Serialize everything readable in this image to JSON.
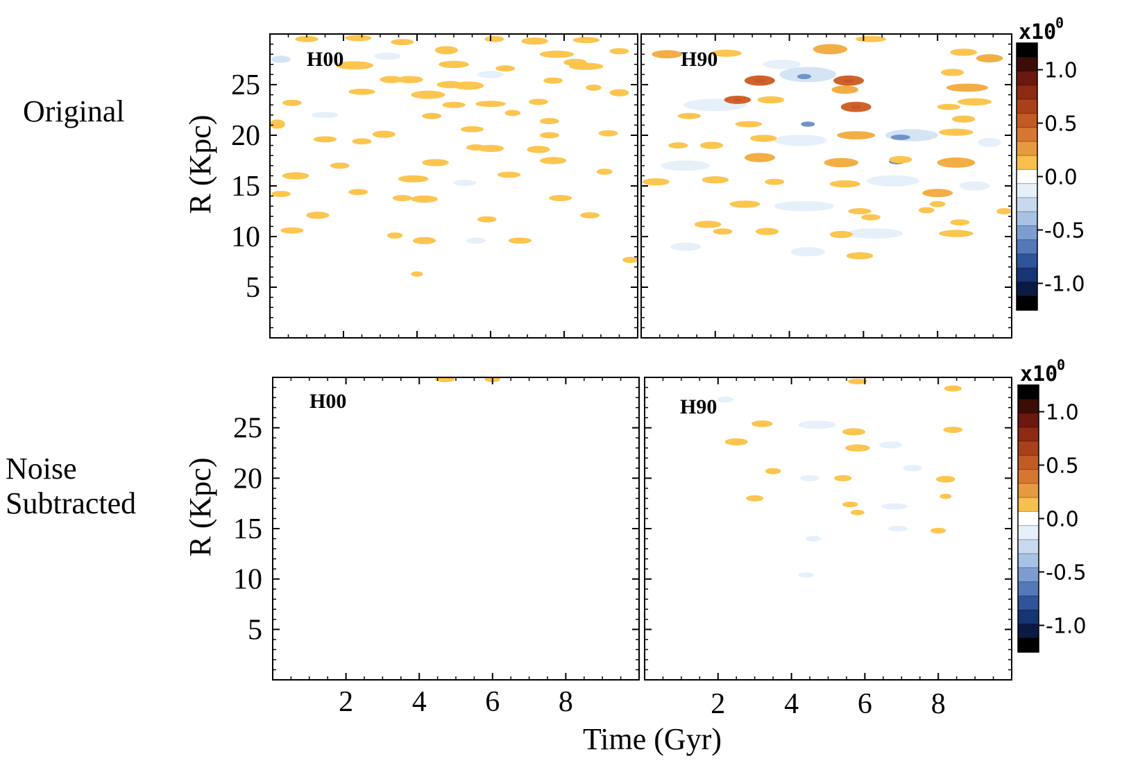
{
  "chart_data": {
    "type": "heatmap",
    "description_units": {
      "x": "Time (Gyr)",
      "y": "R (Kpc)",
      "z": "x10^0"
    },
    "xlabel": "Time (Gyr)",
    "ylabel": "R (Kpc)",
    "xlim": [
      0,
      10
    ],
    "ylim": [
      0,
      30
    ],
    "x_ticks": [
      2,
      4,
      6,
      8
    ],
    "x_tick_labels": [
      "2",
      "4",
      "6",
      "8"
    ],
    "y_ticks": [
      5,
      10,
      15,
      20,
      25
    ],
    "y_tick_labels": [
      "5",
      "10",
      "15",
      "20",
      "25"
    ],
    "rows": [
      {
        "label": "Original"
      },
      {
        "label": "Noise Subtracted",
        "label_lines": [
          "Noise",
          "Subtracted"
        ]
      }
    ],
    "colorbar": {
      "exponent_base": "x10",
      "exponent_power": "0",
      "range": [
        -1.25,
        1.25
      ],
      "tick_values": [
        1.0,
        0.5,
        0.0,
        -0.5,
        -1.0
      ],
      "tick_labels": [
        "1.0",
        "0.5",
        "0.0",
        "-0.5",
        "-1.0"
      ],
      "colors": [
        "#000000",
        "#3a0d06",
        "#6a1810",
        "#8c2a12",
        "#a8401a",
        "#c25a24",
        "#d57633",
        "#e69a40",
        "#f7c04e",
        "#ffffff",
        "#e6f0f9",
        "#c8d9ee",
        "#a8c2e4",
        "#7d9dd0",
        "#5478b8",
        "#2f549a",
        "#173473",
        "#0a1a44",
        "#000000"
      ]
    },
    "panels": [
      {
        "row": 0,
        "col": 0,
        "label": "H00",
        "blobs": [
          [
            1.0,
            29.5,
            0.4,
            0.2,
            0.3
          ],
          [
            2.4,
            29.6,
            0.5,
            0.2,
            0.3
          ],
          [
            3.6,
            29.2,
            0.4,
            0.2,
            0.3
          ],
          [
            6.1,
            29.5,
            0.3,
            0.2,
            0.3
          ],
          [
            7.2,
            29.3,
            0.5,
            0.3,
            0.3
          ],
          [
            8.6,
            29.4,
            0.5,
            0.2,
            0.3
          ],
          [
            4.8,
            28.4,
            0.4,
            0.4,
            0.35
          ],
          [
            7.8,
            28.0,
            0.7,
            0.3,
            0.35
          ],
          [
            8.3,
            27.2,
            0.4,
            0.3,
            0.35
          ],
          [
            9.5,
            28.3,
            0.3,
            0.2,
            0.3
          ],
          [
            2.3,
            26.9,
            0.8,
            0.4,
            0.35
          ],
          [
            5.0,
            27.0,
            0.6,
            0.3,
            0.35
          ],
          [
            8.6,
            26.8,
            0.7,
            0.3,
            0.35
          ],
          [
            6.4,
            26.6,
            0.3,
            0.2,
            0.3
          ],
          [
            3.3,
            25.5,
            0.4,
            0.3,
            0.3
          ],
          [
            3.8,
            25.5,
            0.5,
            0.3,
            0.3
          ],
          [
            4.9,
            25.0,
            0.5,
            0.3,
            0.3
          ],
          [
            5.4,
            24.9,
            0.6,
            0.4,
            0.35
          ],
          [
            7.7,
            25.4,
            0.3,
            0.2,
            0.3
          ],
          [
            2.5,
            24.3,
            0.5,
            0.2,
            0.3
          ],
          [
            8.8,
            24.7,
            0.2,
            0.2,
            0.3
          ],
          [
            4.3,
            24.0,
            0.7,
            0.4,
            0.35
          ],
          [
            9.5,
            24.2,
            0.3,
            0.3,
            0.3
          ],
          [
            0.6,
            23.2,
            0.3,
            0.2,
            0.3
          ],
          [
            5.0,
            23.0,
            0.4,
            0.2,
            0.3
          ],
          [
            6.0,
            23.1,
            0.6,
            0.2,
            0.3
          ],
          [
            7.3,
            23.3,
            0.3,
            0.2,
            0.3
          ],
          [
            4.4,
            21.9,
            0.3,
            0.2,
            0.3
          ],
          [
            6.6,
            22.2,
            0.2,
            0.2,
            0.3
          ],
          [
            0.2,
            21.1,
            0.2,
            0.5,
            0.35
          ],
          [
            7.6,
            21.4,
            0.3,
            0.2,
            0.3
          ],
          [
            5.5,
            20.6,
            0.4,
            0.2,
            0.3
          ],
          [
            9.2,
            20.2,
            0.3,
            0.2,
            0.3
          ],
          [
            3.1,
            20.1,
            0.4,
            0.3,
            0.35
          ],
          [
            7.6,
            20.0,
            0.3,
            0.2,
            0.3
          ],
          [
            1.5,
            19.6,
            0.4,
            0.2,
            0.3
          ],
          [
            2.5,
            19.4,
            0.3,
            0.2,
            0.3
          ],
          [
            5.6,
            18.8,
            0.3,
            0.2,
            0.3
          ],
          [
            6.0,
            18.7,
            0.5,
            0.3,
            0.35
          ],
          [
            7.3,
            18.6,
            0.4,
            0.3,
            0.35
          ],
          [
            4.5,
            17.3,
            0.5,
            0.3,
            0.35
          ],
          [
            7.7,
            17.5,
            0.5,
            0.3,
            0.35
          ],
          [
            1.9,
            17.0,
            0.3,
            0.2,
            0.3
          ],
          [
            0.7,
            16.0,
            0.5,
            0.3,
            0.35
          ],
          [
            3.9,
            15.7,
            0.6,
            0.3,
            0.35
          ],
          [
            6.5,
            16.1,
            0.4,
            0.2,
            0.3
          ],
          [
            9.1,
            16.4,
            0.2,
            0.2,
            0.3
          ],
          [
            0.3,
            14.2,
            0.3,
            0.2,
            0.3
          ],
          [
            2.4,
            14.4,
            0.3,
            0.2,
            0.3
          ],
          [
            4.2,
            13.7,
            0.5,
            0.3,
            0.35
          ],
          [
            7.9,
            13.8,
            0.4,
            0.2,
            0.3
          ],
          [
            3.6,
            13.8,
            0.3,
            0.2,
            0.3
          ],
          [
            1.3,
            12.1,
            0.4,
            0.3,
            0.35
          ],
          [
            5.9,
            11.7,
            0.3,
            0.2,
            0.3
          ],
          [
            8.7,
            12.1,
            0.3,
            0.2,
            0.3
          ],
          [
            0.6,
            10.6,
            0.4,
            0.2,
            0.3
          ],
          [
            4.2,
            9.6,
            0.4,
            0.3,
            0.35
          ],
          [
            6.8,
            9.6,
            0.4,
            0.2,
            0.3
          ],
          [
            3.4,
            10.1,
            0.2,
            0.2,
            0.3
          ],
          [
            9.8,
            7.7,
            0.2,
            0.2,
            0.3
          ],
          [
            4.0,
            6.3,
            0.1,
            0.1,
            0.3
          ],
          [
            0.3,
            27.5,
            0.3,
            0.3,
            -0.18
          ],
          [
            3.2,
            27.8,
            0.5,
            0.3,
            -0.12
          ],
          [
            6.0,
            26.0,
            0.5,
            0.3,
            -0.12
          ],
          [
            1.5,
            22.0,
            0.5,
            0.2,
            -0.12
          ],
          [
            5.3,
            15.3,
            0.4,
            0.2,
            -0.12
          ],
          [
            5.6,
            9.6,
            0.3,
            0.2,
            -0.12
          ]
        ]
      },
      {
        "row": 0,
        "col": 1,
        "label": "H90",
        "blobs": [
          [
            0.7,
            28.0,
            0.6,
            0.4,
            0.4
          ],
          [
            2.3,
            28.1,
            0.6,
            0.3,
            0.35
          ],
          [
            5.1,
            28.5,
            0.7,
            0.6,
            0.4
          ],
          [
            8.7,
            28.2,
            0.5,
            0.3,
            0.35
          ],
          [
            9.4,
            27.6,
            0.5,
            0.4,
            0.4
          ],
          [
            6.2,
            29.5,
            0.6,
            0.2,
            0.3
          ],
          [
            3.2,
            25.4,
            0.6,
            0.6,
            0.5
          ],
          [
            5.6,
            25.4,
            0.6,
            0.6,
            0.5
          ],
          [
            5.5,
            24.5,
            0.5,
            0.4,
            0.4
          ],
          [
            8.8,
            24.7,
            0.9,
            0.4,
            0.4
          ],
          [
            8.4,
            26.2,
            0.4,
            0.3,
            0.35
          ],
          [
            9.0,
            23.3,
            0.7,
            0.3,
            0.35
          ],
          [
            2.6,
            23.5,
            0.5,
            0.4,
            0.55
          ],
          [
            3.5,
            23.5,
            0.5,
            0.3,
            0.35
          ],
          [
            5.8,
            22.8,
            0.6,
            0.6,
            0.5
          ],
          [
            1.3,
            21.9,
            0.4,
            0.2,
            0.3
          ],
          [
            2.9,
            21.1,
            0.5,
            0.2,
            0.3
          ],
          [
            3.3,
            19.7,
            0.5,
            0.3,
            0.35
          ],
          [
            5.8,
            20.0,
            0.8,
            0.4,
            0.4
          ],
          [
            8.5,
            20.3,
            0.7,
            0.3,
            0.35
          ],
          [
            8.7,
            21.6,
            0.4,
            0.3,
            0.35
          ],
          [
            8.3,
            22.8,
            0.4,
            0.2,
            0.3
          ],
          [
            1.0,
            19.0,
            0.3,
            0.2,
            0.3
          ],
          [
            1.9,
            19.0,
            0.4,
            0.3,
            0.35
          ],
          [
            3.2,
            17.8,
            0.6,
            0.5,
            0.4
          ],
          [
            5.4,
            17.3,
            0.7,
            0.5,
            0.4
          ],
          [
            8.5,
            17.3,
            0.8,
            0.6,
            0.45
          ],
          [
            7.0,
            17.6,
            0.4,
            0.3,
            0.35
          ],
          [
            0.4,
            15.4,
            0.5,
            0.3,
            0.35
          ],
          [
            2.0,
            15.6,
            0.5,
            0.3,
            0.35
          ],
          [
            5.5,
            15.2,
            0.6,
            0.3,
            0.35
          ],
          [
            3.6,
            15.4,
            0.3,
            0.2,
            0.3
          ],
          [
            8.0,
            14.3,
            0.6,
            0.4,
            0.4
          ],
          [
            2.8,
            13.2,
            0.6,
            0.3,
            0.35
          ],
          [
            5.9,
            12.5,
            0.4,
            0.2,
            0.3
          ],
          [
            8.0,
            13.2,
            0.2,
            0.2,
            0.3
          ],
          [
            1.8,
            11.2,
            0.5,
            0.3,
            0.35
          ],
          [
            2.2,
            10.5,
            0.3,
            0.2,
            0.3
          ],
          [
            3.4,
            10.5,
            0.4,
            0.3,
            0.35
          ],
          [
            5.4,
            10.2,
            0.4,
            0.3,
            0.35
          ],
          [
            8.5,
            10.3,
            0.7,
            0.3,
            0.35
          ],
          [
            9.8,
            12.5,
            0.2,
            0.2,
            0.3
          ],
          [
            6.2,
            11.9,
            0.3,
            0.2,
            0.3
          ],
          [
            5.9,
            8.1,
            0.5,
            0.3,
            0.35
          ],
          [
            7.7,
            12.6,
            0.2,
            0.2,
            0.3
          ],
          [
            8.6,
            11.4,
            0.3,
            0.2,
            0.3
          ],
          [
            2.0,
            23.0,
            1.5,
            0.8,
            -0.15
          ],
          [
            4.5,
            26.0,
            1.3,
            1.1,
            -0.2
          ],
          [
            7.3,
            20.0,
            1.2,
            0.8,
            -0.18
          ],
          [
            4.3,
            19.5,
            1.2,
            0.7,
            -0.15
          ],
          [
            1.2,
            17.0,
            1.1,
            0.6,
            -0.15
          ],
          [
            6.8,
            15.5,
            1.2,
            0.7,
            -0.15
          ],
          [
            4.4,
            13.0,
            1.4,
            0.6,
            -0.12
          ],
          [
            6.3,
            10.3,
            1.3,
            0.6,
            -0.12
          ],
          [
            4.5,
            8.5,
            0.7,
            0.5,
            -0.12
          ],
          [
            1.2,
            9.0,
            0.6,
            0.4,
            -0.12
          ],
          [
            9.0,
            15.0,
            0.6,
            0.5,
            -0.12
          ],
          [
            3.8,
            27.0,
            0.8,
            0.5,
            -0.15
          ],
          [
            9.4,
            19.3,
            0.4,
            0.5,
            -0.15
          ],
          [
            4.4,
            25.8,
            0.15,
            0.1,
            -0.4
          ],
          [
            7.0,
            19.8,
            0.3,
            0.12,
            -0.5
          ],
          [
            6.9,
            17.4,
            0.2,
            0.12,
            -0.5
          ],
          [
            4.5,
            21.1,
            0.15,
            0.1,
            -0.4
          ]
        ]
      },
      {
        "row": 1,
        "col": 0,
        "label": "H00",
        "blobs": [
          [
            4.7,
            29.8,
            0.3,
            0.15,
            0.3
          ],
          [
            6.0,
            29.8,
            0.2,
            0.15,
            0.3
          ]
        ]
      },
      {
        "row": 1,
        "col": 1,
        "label": "H90",
        "blobs": [
          [
            3.2,
            25.4,
            0.35,
            0.25,
            0.35
          ],
          [
            2.5,
            23.6,
            0.4,
            0.3,
            0.35
          ],
          [
            5.7,
            24.6,
            0.4,
            0.3,
            0.35
          ],
          [
            5.8,
            23.0,
            0.45,
            0.3,
            0.35
          ],
          [
            3.5,
            20.7,
            0.2,
            0.2,
            0.3
          ],
          [
            5.4,
            20.0,
            0.25,
            0.2,
            0.3
          ],
          [
            8.2,
            19.9,
            0.3,
            0.25,
            0.35
          ],
          [
            3.0,
            18.0,
            0.25,
            0.2,
            0.3
          ],
          [
            5.6,
            17.4,
            0.2,
            0.15,
            0.3
          ],
          [
            5.8,
            16.6,
            0.15,
            0.12,
            0.3
          ],
          [
            8.0,
            14.8,
            0.2,
            0.15,
            0.3
          ],
          [
            8.4,
            24.8,
            0.3,
            0.2,
            0.3
          ],
          [
            8.4,
            28.9,
            0.25,
            0.2,
            0.3
          ],
          [
            5.8,
            29.6,
            0.3,
            0.15,
            0.3
          ],
          [
            8.2,
            18.2,
            0.1,
            0.1,
            0.3
          ],
          [
            4.7,
            25.3,
            0.8,
            0.4,
            -0.12
          ],
          [
            6.7,
            23.3,
            0.4,
            0.3,
            -0.12
          ],
          [
            7.3,
            21.0,
            0.3,
            0.2,
            -0.12
          ],
          [
            6.8,
            17.2,
            0.5,
            0.2,
            -0.12
          ],
          [
            4.5,
            20.0,
            0.3,
            0.2,
            -0.12
          ],
          [
            2.2,
            27.8,
            0.2,
            0.2,
            -0.12
          ],
          [
            6.9,
            15.0,
            0.3,
            0.15,
            -0.12
          ],
          [
            4.6,
            14.0,
            0.2,
            0.15,
            -0.12
          ],
          [
            4.4,
            10.4,
            0.2,
            0.1,
            -0.12
          ]
        ]
      }
    ]
  }
}
